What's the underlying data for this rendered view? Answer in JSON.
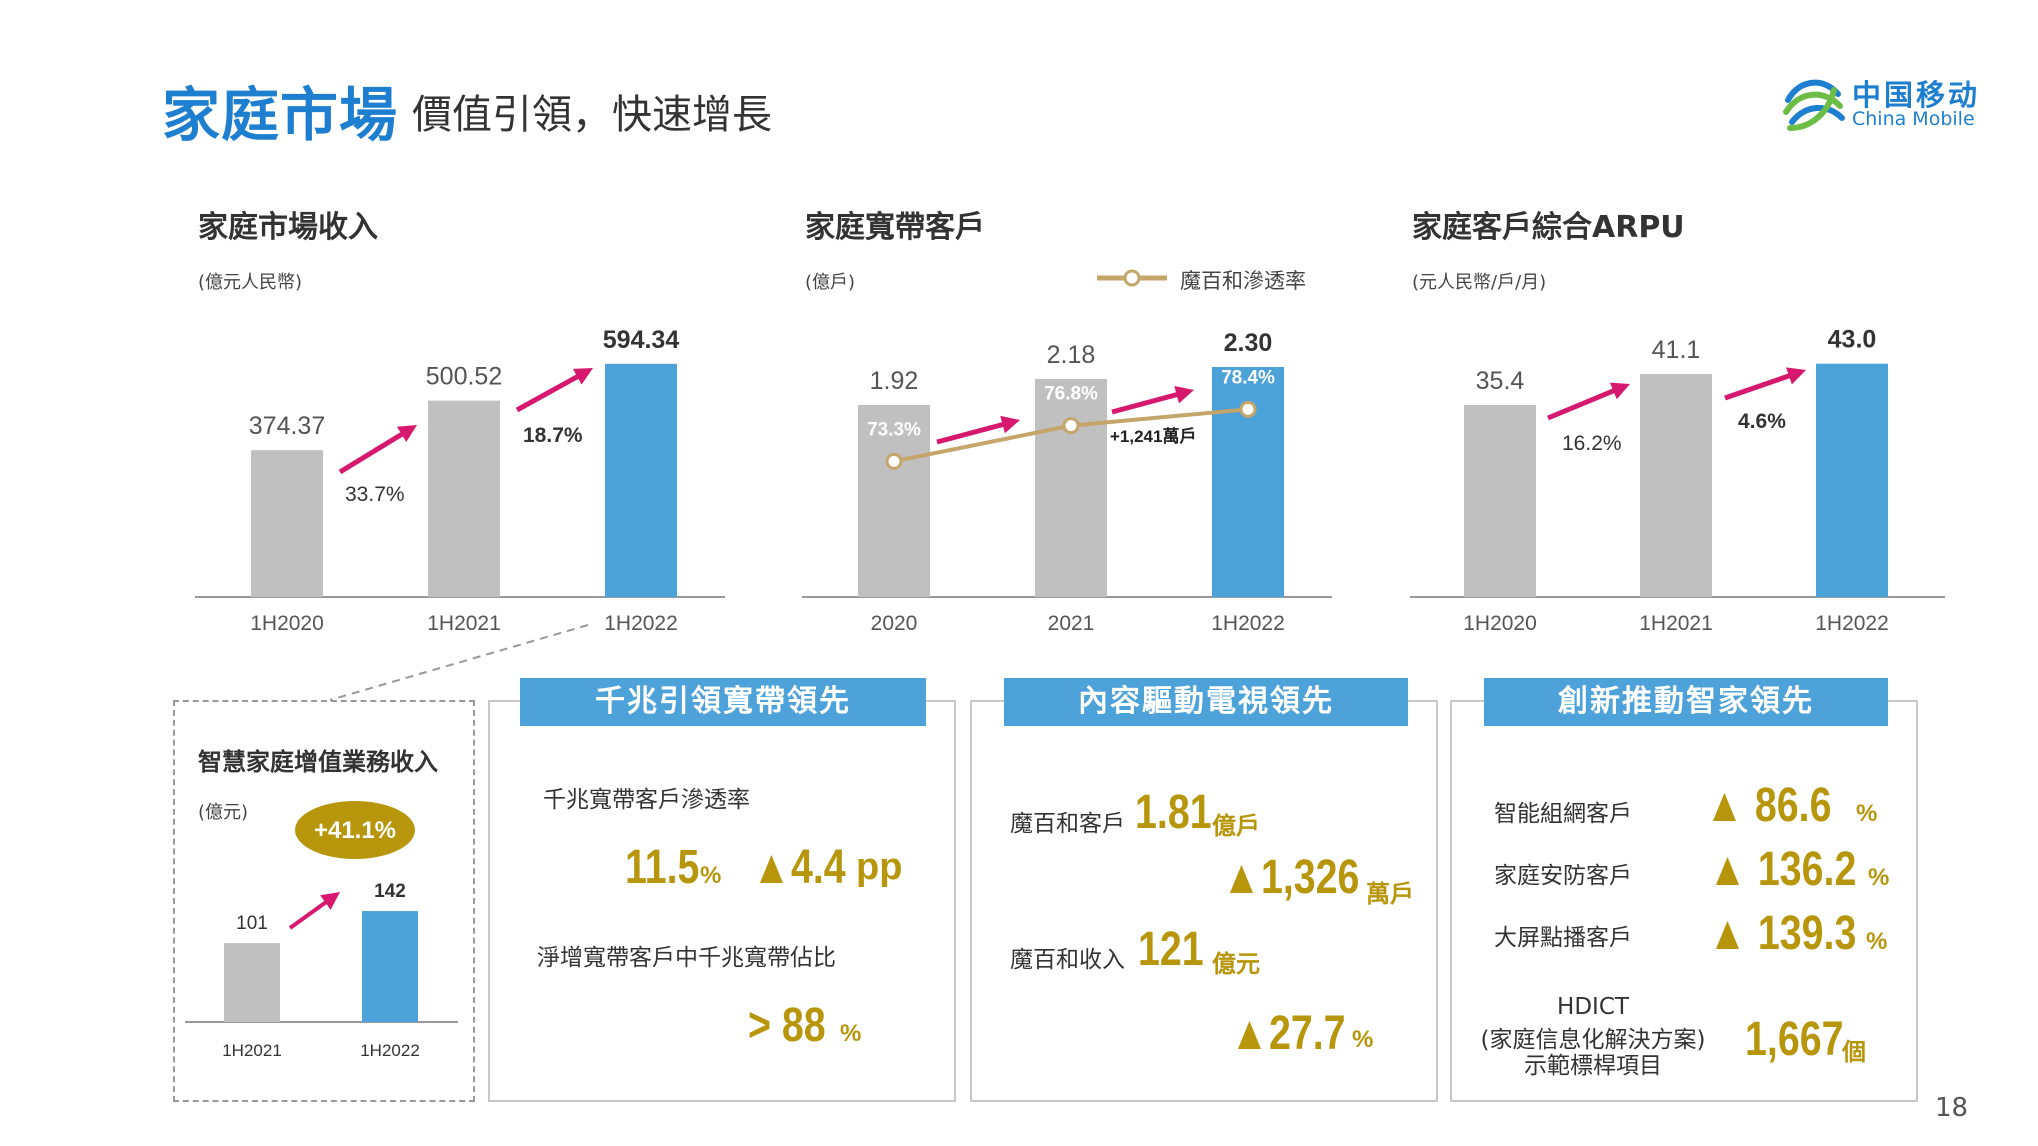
{
  "header": {
    "title": "家庭市場",
    "subtitle": "價值引領，快速增長",
    "logo_cn": "中国移动",
    "logo_en": "China Mobile"
  },
  "colors": {
    "grey": "#c0c0c0",
    "blue": "#4ba3da",
    "accent": "#d6186f",
    "gold": "#b8960c",
    "line": "#c4a56a"
  },
  "chart_data": [
    {
      "type": "bar",
      "title": "家庭市場收入",
      "unit": "(億元人民幣)",
      "categories": [
        "1H2020",
        "1H2021",
        "1H2022"
      ],
      "values": [
        374.37,
        500.52,
        594.34
      ],
      "value_labels": [
        "374.37",
        "500.52",
        "594.34"
      ],
      "growth_labels": [
        "33.7%",
        "18.7%"
      ],
      "ylim": [
        0,
        650
      ]
    },
    {
      "type": "bar",
      "title": "家庭寬帶客戶",
      "unit": "(億戶)",
      "legend": "魔百和滲透率",
      "categories": [
        "2020",
        "2021",
        "1H2022"
      ],
      "values": [
        1.92,
        2.18,
        2.3
      ],
      "value_labels": [
        "1.92",
        "2.18",
        "2.30"
      ],
      "growth_label": "+1,241萬戶",
      "line_series": {
        "name": "魔百和滲透率",
        "values": [
          73.3,
          76.8,
          78.4
        ],
        "labels": [
          "73.3%",
          "76.8%",
          "78.4%"
        ],
        "ylim": [
          60,
          85
        ]
      },
      "ylim": [
        0,
        2.55
      ]
    },
    {
      "type": "bar",
      "title": "家庭客戶綜合ARPU",
      "unit": "(元人民幣/戶/月)",
      "categories": [
        "1H2020",
        "1H2021",
        "1H2022"
      ],
      "values": [
        35.4,
        41.1,
        43.0
      ],
      "value_labels": [
        "35.4",
        "41.1",
        "43.0"
      ],
      "growth_labels": [
        "16.2%",
        "4.6%"
      ],
      "ylim": [
        0,
        47
      ]
    },
    {
      "type": "bar",
      "title": "智慧家庭增值業務收入",
      "unit": "(億元)",
      "categories": [
        "1H2021",
        "1H2022"
      ],
      "values": [
        101,
        142
      ],
      "value_labels": [
        "101",
        "142"
      ],
      "growth_label": "+41.1%",
      "ylim": [
        0,
        160
      ]
    }
  ],
  "panels": {
    "gigabit": {
      "header": "千兆引領寬帶領先",
      "label1": "千兆寬帶客戶滲透率",
      "value1": "11.5",
      "unit1": "%",
      "delta1": "▲4.4",
      "delta1_unit": "pp",
      "label2": "淨增寬帶客戶中千兆寬帶佔比",
      "value2": "> 88",
      "unit2": "%"
    },
    "content": {
      "header": "內容驅動電視領先",
      "label1": "魔百和客戶",
      "value1": "1.81",
      "unit1": "億戶",
      "delta1": "▲1,326",
      "delta1_unit": "萬戶",
      "label2": "魔百和收入",
      "value2": "121",
      "unit2": "億元",
      "delta2": "▲27.7",
      "delta2_unit": "%"
    },
    "innovation": {
      "header": "創新推動智家領先",
      "rows": [
        {
          "label": "智能組網客戶",
          "value": "▲ 86.6",
          "unit": "%"
        },
        {
          "label": "家庭安防客戶",
          "value": "▲ 136.2",
          "unit": "%"
        },
        {
          "label": "大屏點播客戶",
          "value": "▲ 139.3",
          "unit": "%"
        }
      ],
      "hdict_l1": "HDICT",
      "hdict_l2": "(家庭信息化解決方案)",
      "hdict_l3": "示範標桿項目",
      "hdict_value": "1,667",
      "hdict_unit": "個"
    }
  },
  "page_number": "18"
}
